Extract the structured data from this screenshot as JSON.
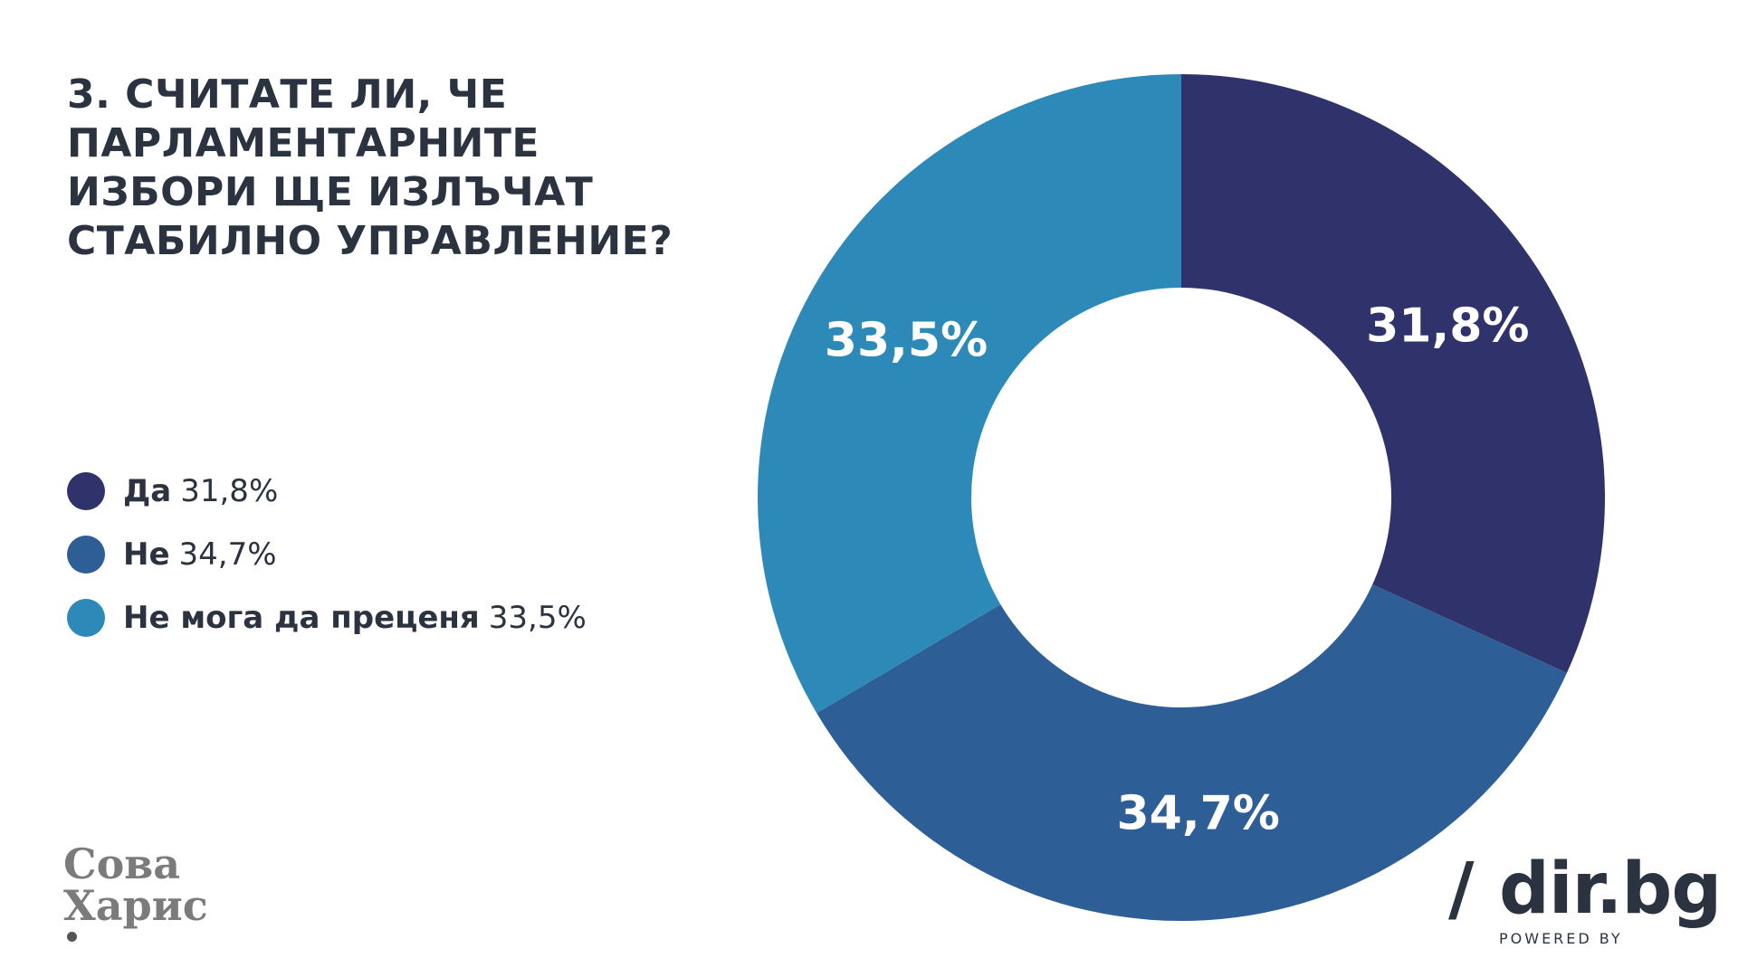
{
  "title_lines": [
    "3. СЧИТАТЕ ЛИ, ЧЕ",
    "ПАРЛАМЕНТАРНИТЕ",
    "ИЗБОРИ ЩЕ ИЗЛЪЧАТ",
    "СТАБИЛНО УПРАВЛЕНИЕ?"
  ],
  "legend": [
    {
      "label": "Да",
      "value": "31,8%",
      "color": "#30336b"
    },
    {
      "label": "Не",
      "value": "34,7%",
      "color": "#2e5e96"
    },
    {
      "label": "Не мога да преценя",
      "value": "33,5%",
      "color": "#2d8ab8"
    }
  ],
  "chart_data": {
    "type": "pie",
    "donut": true,
    "title": "3. СЧИТАТЕ ЛИ, ЧЕ ПАРЛАМЕНТАРНИТЕ ИЗБОРИ ЩЕ ИЗЛЪЧАТ СТАБИЛНО УПРАВЛЕНИЕ?",
    "categories": [
      "Да",
      "Не",
      "Не мога да преценя"
    ],
    "values": [
      31.8,
      34.7,
      33.5
    ],
    "data_labels": [
      "31,8%",
      "34,7%",
      "33,5%"
    ],
    "colors": [
      "#30336b",
      "#2e5e96",
      "#2d8ab8"
    ],
    "start_angle_deg": 0,
    "direction": "clockwise",
    "legend_position": "left"
  },
  "logos": {
    "left_line1": "Сова",
    "left_line2": "Харис",
    "right_brand": "dir.bg",
    "right_slash": "/",
    "right_powered": "POWERED BY"
  }
}
